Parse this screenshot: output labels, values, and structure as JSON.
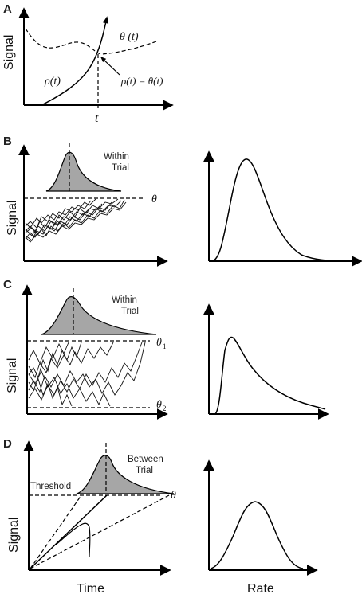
{
  "panels": {
    "a": {
      "letter": "A",
      "ylabel": "Signal",
      "theta_label": "θ (t)",
      "rho_label": "ρ(t)",
      "equality_label": "ρ(t) = θ(t)",
      "time_label": "t"
    },
    "b": {
      "letter": "B",
      "ylabel": "Signal",
      "dist_line1": "Within",
      "dist_line2": "Trial",
      "threshold_label": "θ"
    },
    "c": {
      "letter": "C",
      "ylabel": "Signal",
      "dist_line1": "Within",
      "dist_line2": "Trial",
      "upper_label": "θ",
      "upper_sub": "1",
      "lower_label": "θ",
      "lower_sub": "2"
    },
    "d": {
      "letter": "D",
      "ylabel": "Signal",
      "threshold_text": "Threshold",
      "dist_line1": "Between",
      "dist_line2": "Trial",
      "threshold_label": "θ",
      "xlabel": "Time",
      "right_xlabel": "Rate"
    }
  }
}
